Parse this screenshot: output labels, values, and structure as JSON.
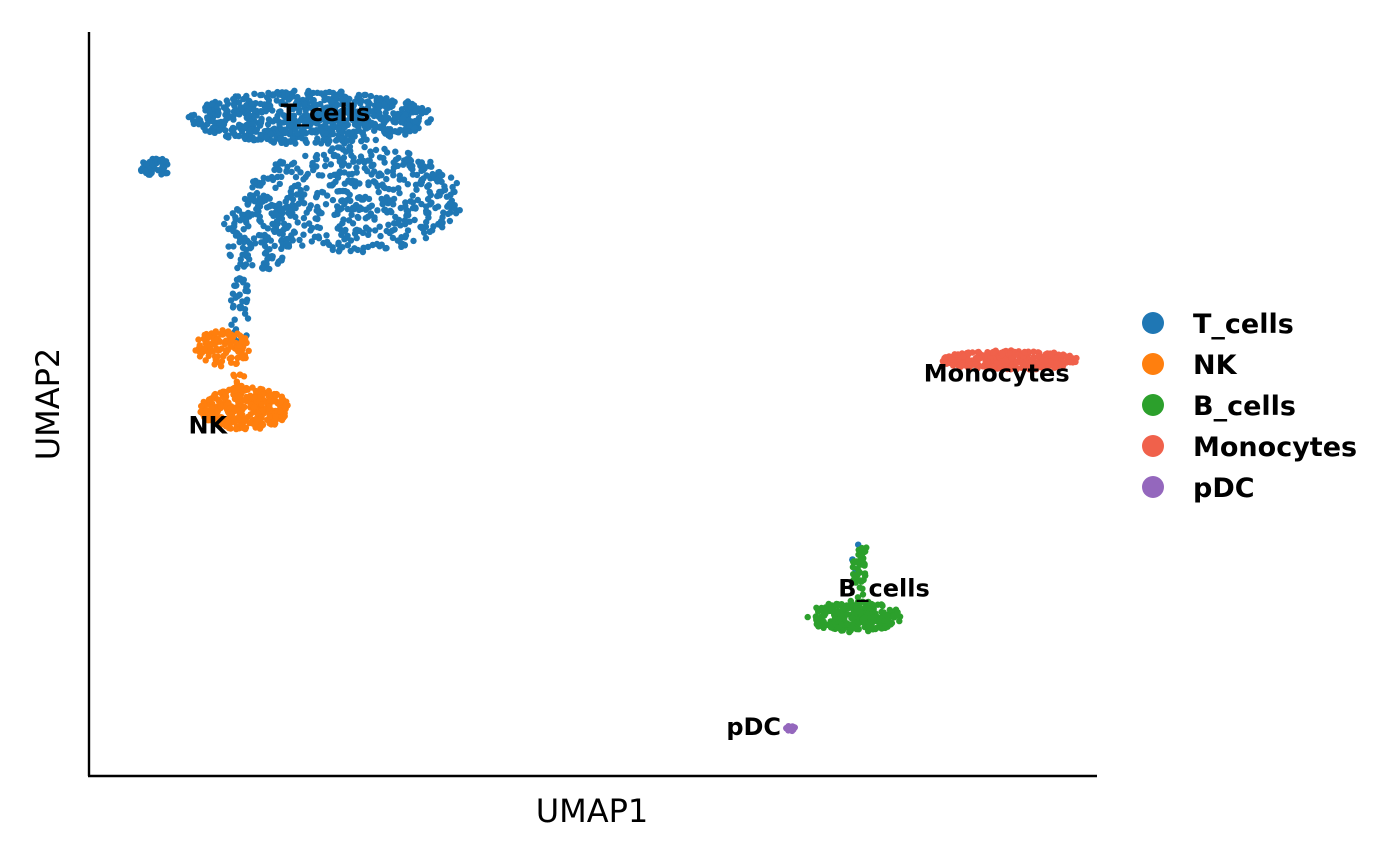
{
  "chart_data": {
    "type": "scatter",
    "xlabel": "UMAP1",
    "ylabel": "UMAP2",
    "xlim": [
      0,
      100
    ],
    "ylim": [
      0,
      100
    ],
    "grid": false,
    "ticks": false,
    "legend_position": "right",
    "series": [
      {
        "name": "T_cells",
        "color": "#1f77b4",
        "label": "T_cells",
        "label_at": [
          23,
          90
        ],
        "clusters": [
          {
            "cx": 21.5,
            "cy": 90.5,
            "rx": 12.5,
            "ry": 3.8,
            "n": 720
          },
          {
            "cx": 26,
            "cy": 79,
            "rx": 11,
            "ry": 7.5,
            "n": 520
          },
          {
            "cx": 16,
            "cy": 74,
            "rx": 3.5,
            "ry": 5.5,
            "n": 130
          },
          {
            "cx": 5.8,
            "cy": 83.5,
            "rx": 1.8,
            "ry": 1.2,
            "n": 45
          },
          {
            "cx": 14.3,
            "cy": 64,
            "rx": 1.0,
            "ry": 6,
            "n": 40
          },
          {
            "cx": 77.2,
            "cy": 28.5,
            "rx": 0.5,
            "ry": 2.5,
            "n": 6
          }
        ]
      },
      {
        "name": "NK",
        "color": "#ff7f0e",
        "label": "NK",
        "label_at": [
          11,
          46
        ],
        "clusters": [
          {
            "cx": 14.8,
            "cy": 49.5,
            "rx": 4.6,
            "ry": 3.0,
            "n": 320
          },
          {
            "cx": 12.5,
            "cy": 58.0,
            "rx": 2.8,
            "ry": 2.6,
            "n": 110
          },
          {
            "cx": 14.2,
            "cy": 53.5,
            "rx": 0.9,
            "ry": 1.2,
            "n": 12
          }
        ]
      },
      {
        "name": "B_cells",
        "color": "#2ca02c",
        "label": "B_cells",
        "label_at": [
          80,
          23
        ],
        "clusters": [
          {
            "cx": 77.0,
            "cy": 20.2,
            "rx": 4.8,
            "ry": 2.2,
            "n": 230
          },
          {
            "cx": 77.5,
            "cy": 26.0,
            "rx": 0.8,
            "ry": 3.5,
            "n": 35
          },
          {
            "cx": 77.8,
            "cy": 29.5,
            "rx": 0.6,
            "ry": 0.6,
            "n": 10
          }
        ]
      },
      {
        "name": "Monocytes",
        "color": "#f0614b",
        "label": "Monocytes",
        "label_at": [
          91.5,
          53.3
        ],
        "clusters": [
          {
            "cx": 92.8,
            "cy": 56.3,
            "rx": 7.0,
            "ry": 1.4,
            "n": 320
          }
        ]
      },
      {
        "name": "pDC",
        "color": "#9467bd",
        "label": "pDC",
        "label_at": [
          66.7,
          3.5
        ],
        "clusters": [
          {
            "cx": 70.5,
            "cy": 4.5,
            "rx": 0.55,
            "ry": 0.45,
            "n": 14
          }
        ]
      }
    ]
  }
}
